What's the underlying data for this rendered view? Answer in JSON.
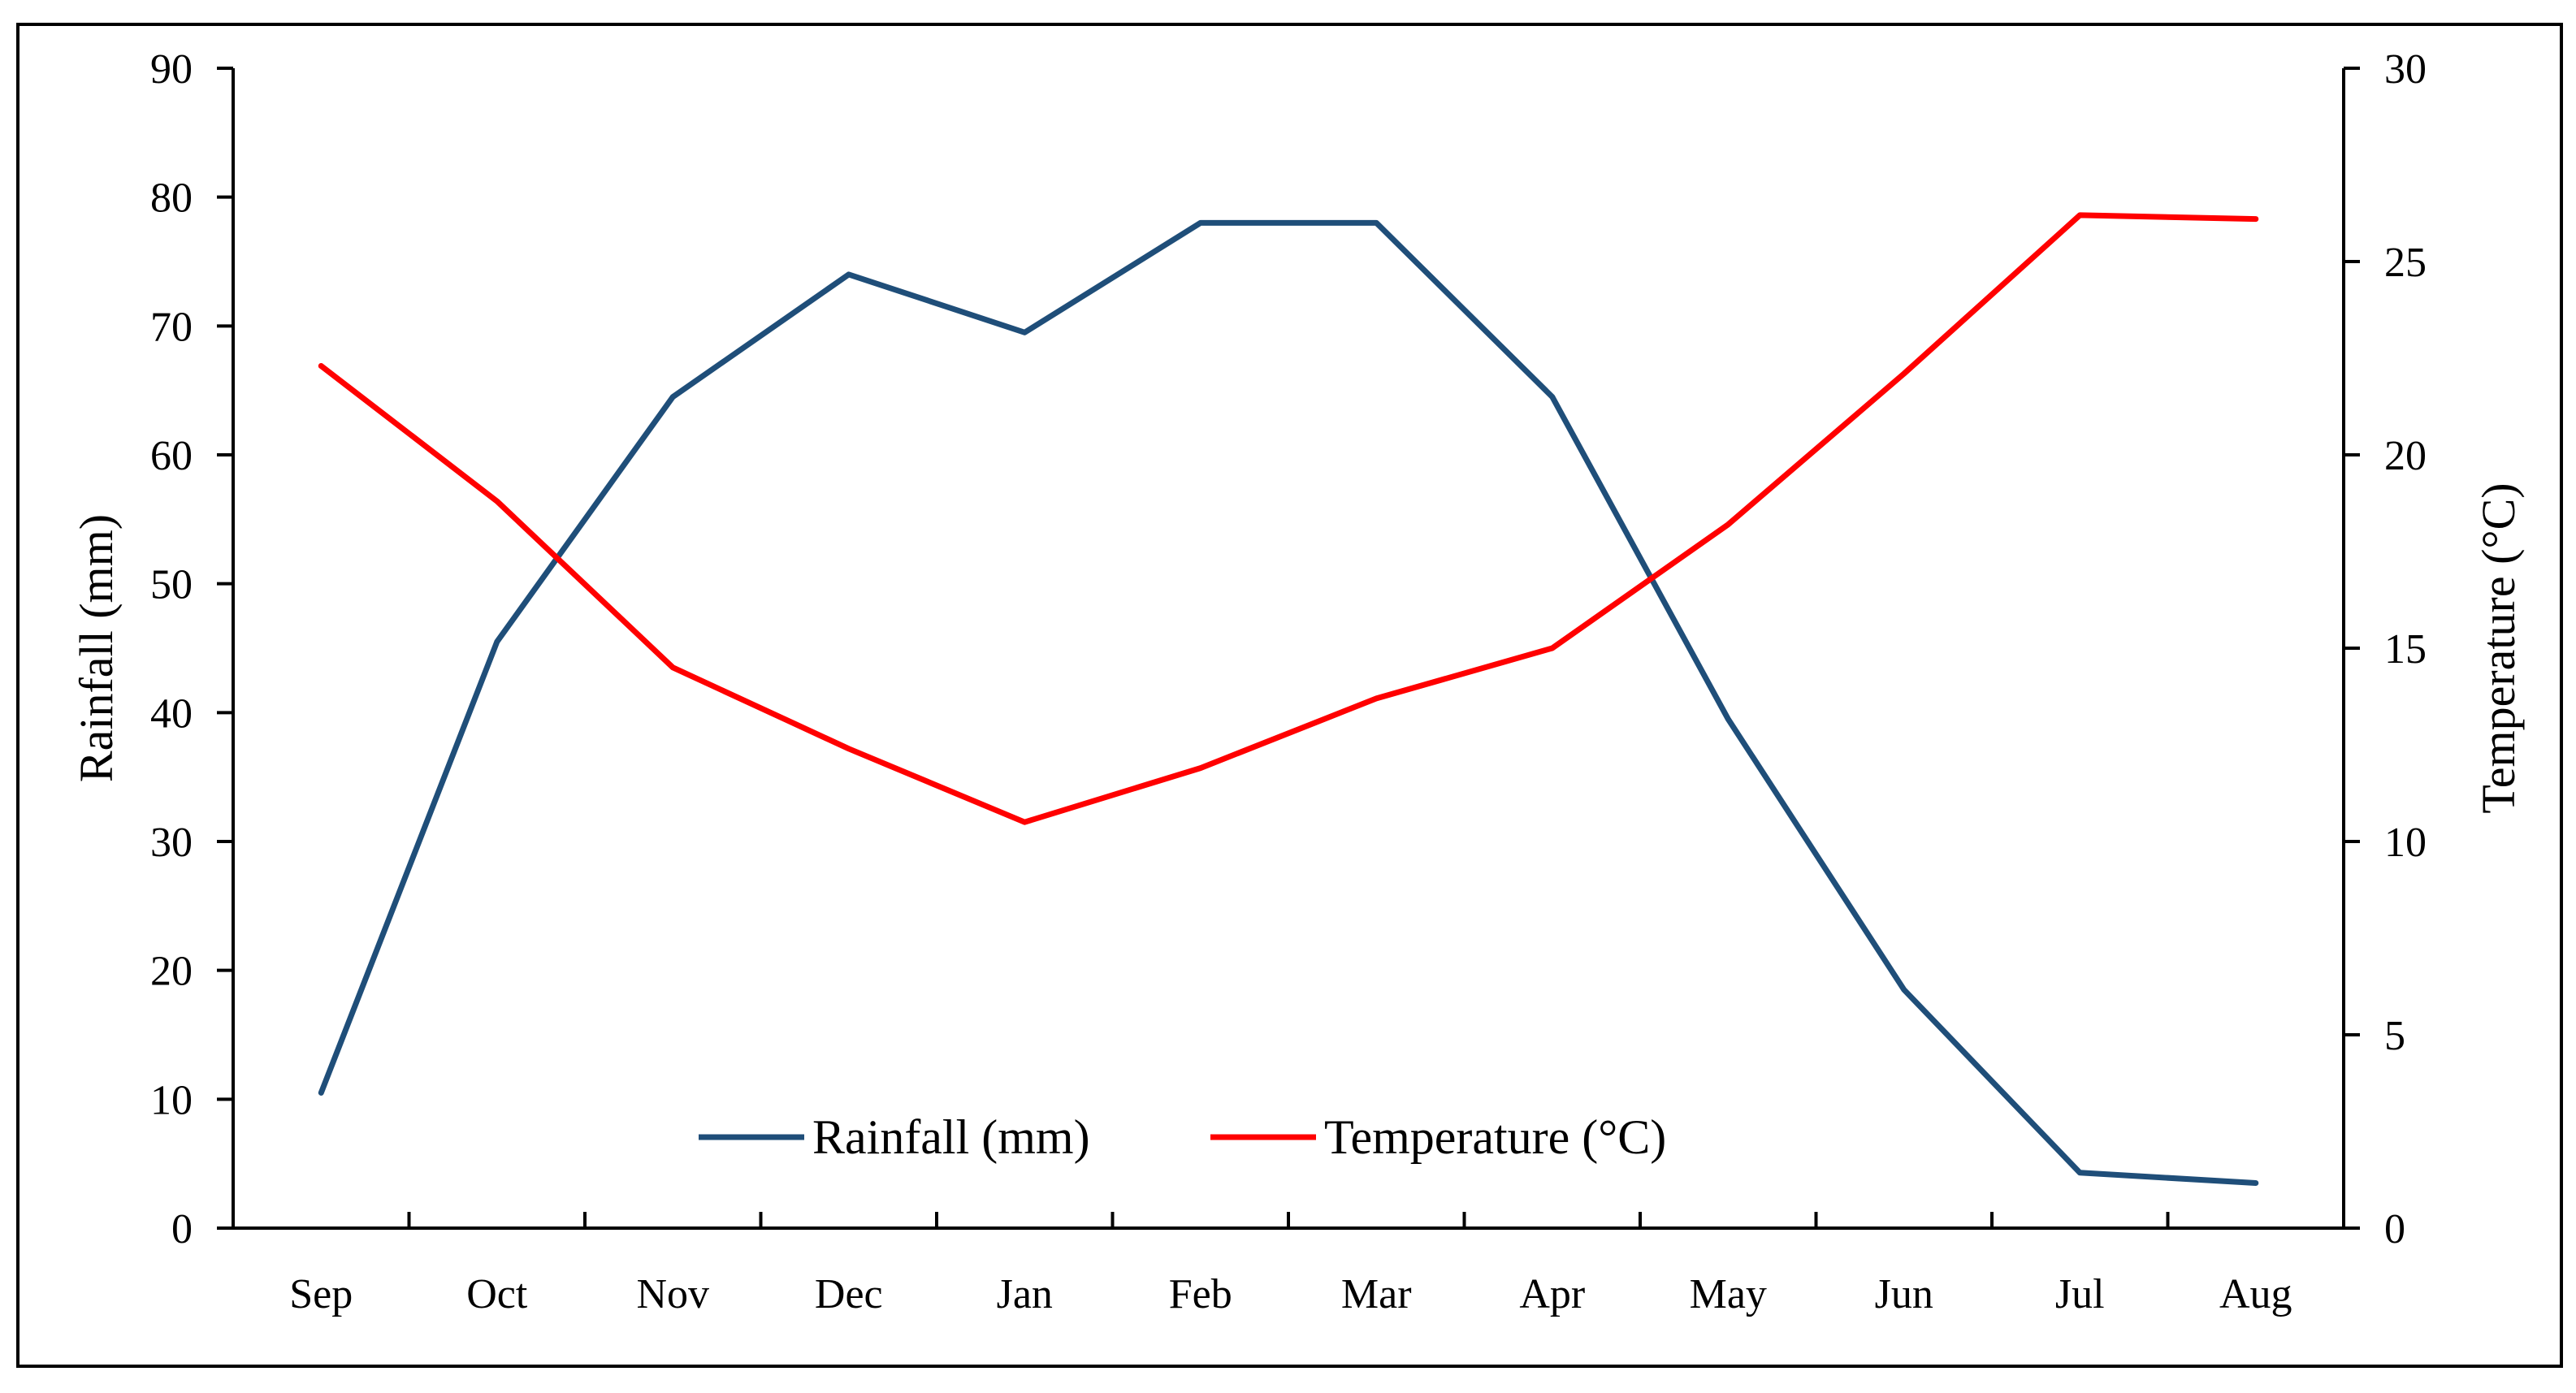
{
  "chart_data": {
    "type": "line",
    "title": "",
    "categories": [
      "Sep",
      "Oct",
      "Nov",
      "Dec",
      "Jan",
      "Feb",
      "Mar",
      "Apr",
      "May",
      "Jun",
      "Jul",
      "Aug"
    ],
    "series": [
      {
        "name": "Rainfall (mm)",
        "axis": "left",
        "color": "#1F4E79",
        "values": [
          10.5,
          45.5,
          64.5,
          74,
          69.5,
          78,
          78,
          64.5,
          39.5,
          18.5,
          4.3,
          3.5
        ]
      },
      {
        "name": "Temperature (°C)",
        "axis": "right",
        "color": "#FF0000",
        "values": [
          22.3,
          18.8,
          14.5,
          12.4,
          10.5,
          11.9,
          13.7,
          15.0,
          18.2,
          22.1,
          26.2,
          26.1
        ]
      }
    ],
    "ylabel": "Rainfall (mm)",
    "ylabel_right": "Temperature (°C)",
    "ylim": [
      0,
      90
    ],
    "y_ticks": [
      "0",
      "10",
      "20",
      "30",
      "40",
      "50",
      "60",
      "70",
      "80",
      "90"
    ],
    "ylim_right": [
      0,
      30
    ],
    "y_ticks_right": [
      "0",
      "5",
      "10",
      "15",
      "20",
      "25",
      "30"
    ],
    "legend": {
      "placement": "bottom-center",
      "entries": [
        "Rainfall (mm)",
        "Temperature (°C)"
      ]
    },
    "grid": false
  }
}
